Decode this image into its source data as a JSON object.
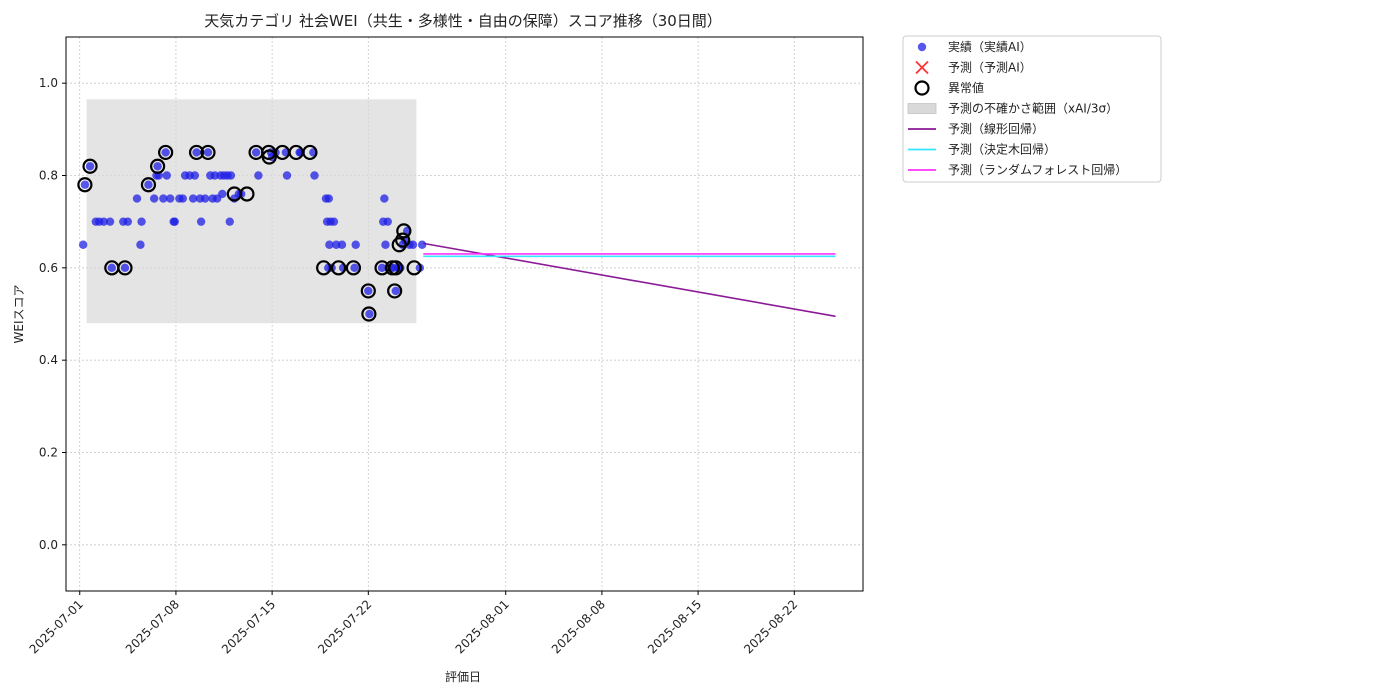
{
  "chart_data": {
    "type": "scatter",
    "title": "天気カテゴリ 社会WEI（共生・多様性・自由の保障）スコア推移（30日間）",
    "xlabel": "評価日",
    "ylabel": "WEIスコア",
    "xlim": [
      "2025-06-30",
      "2025-08-27"
    ],
    "ylim": [
      -0.1,
      1.1
    ],
    "yticks": [
      0.0,
      0.2,
      0.4,
      0.6,
      0.8,
      1.0
    ],
    "ytick_labels": [
      "0.0",
      "0.2",
      "0.4",
      "0.6",
      "0.8",
      "1.0"
    ],
    "xticks": [
      "2025-07-01",
      "2025-07-08",
      "2025-07-15",
      "2025-07-22",
      "2025-08-01",
      "2025-08-08",
      "2025-08-15",
      "2025-08-22"
    ],
    "grid": true,
    "legend_position": "outside-top-right",
    "series": [
      {
        "name": "実績（実績AI）",
        "kind": "scatter",
        "color": "#1f1fe6",
        "points": [
          [
            "2025-07-01T06",
            0.65
          ],
          [
            "2025-07-01T09",
            0.78
          ],
          [
            "2025-07-01T18",
            0.82
          ],
          [
            "2025-07-02T04",
            0.7
          ],
          [
            "2025-07-02T10",
            0.7
          ],
          [
            "2025-07-02T18",
            0.7
          ],
          [
            "2025-07-03T05",
            0.7
          ],
          [
            "2025-07-03T08",
            0.6
          ],
          [
            "2025-07-04T04",
            0.7
          ],
          [
            "2025-07-04T07",
            0.6
          ],
          [
            "2025-07-04T12",
            0.7
          ],
          [
            "2025-07-05T04",
            0.75
          ],
          [
            "2025-07-05T10",
            0.65
          ],
          [
            "2025-07-05T12",
            0.7
          ],
          [
            "2025-07-06T00",
            0.78
          ],
          [
            "2025-07-06T10",
            0.75
          ],
          [
            "2025-07-06T14",
            0.8
          ],
          [
            "2025-07-06T16",
            0.82
          ],
          [
            "2025-07-06T18",
            0.8
          ],
          [
            "2025-07-07T02",
            0.75
          ],
          [
            "2025-07-07T06",
            0.85
          ],
          [
            "2025-07-07T08",
            0.8
          ],
          [
            "2025-07-07T14",
            0.75
          ],
          [
            "2025-07-07T20",
            0.7
          ],
          [
            "2025-07-07T22",
            0.7
          ],
          [
            "2025-07-08T06",
            0.75
          ],
          [
            "2025-07-08T12",
            0.75
          ],
          [
            "2025-07-08T16",
            0.8
          ],
          [
            "2025-07-09T00",
            0.8
          ],
          [
            "2025-07-09T06",
            0.75
          ],
          [
            "2025-07-09T09",
            0.8
          ],
          [
            "2025-07-09T12",
            0.85
          ],
          [
            "2025-07-09T18",
            0.75
          ],
          [
            "2025-07-09T20",
            0.7
          ],
          [
            "2025-07-10T03",
            0.75
          ],
          [
            "2025-07-10T08",
            0.85
          ],
          [
            "2025-07-10T12",
            0.8
          ],
          [
            "2025-07-10T16",
            0.75
          ],
          [
            "2025-07-10T20",
            0.8
          ],
          [
            "2025-07-11T00",
            0.75
          ],
          [
            "2025-07-11T06",
            0.8
          ],
          [
            "2025-07-11T09",
            0.76
          ],
          [
            "2025-07-11T12",
            0.8
          ],
          [
            "2025-07-11T18",
            0.8
          ],
          [
            "2025-07-11T22",
            0.7
          ],
          [
            "2025-07-12T00",
            0.8
          ],
          [
            "2025-07-12T06",
            0.75
          ],
          [
            "2025-07-12T14",
            0.76
          ],
          [
            "2025-07-12T18",
            0.76
          ],
          [
            "2025-07-13T20",
            0.85
          ],
          [
            "2025-07-14T00",
            0.8
          ],
          [
            "2025-07-14T22",
            0.85
          ],
          [
            "2025-07-15T00",
            0.84
          ],
          [
            "2025-07-15T06",
            0.85
          ],
          [
            "2025-07-16T00",
            0.85
          ],
          [
            "2025-07-16T02",
            0.8
          ],
          [
            "2025-07-17T00",
            0.85
          ],
          [
            "2025-07-17T02",
            0.85
          ],
          [
            "2025-07-18T00",
            0.85
          ],
          [
            "2025-07-18T02",
            0.8
          ],
          [
            "2025-07-18T22",
            0.75
          ],
          [
            "2025-07-19T00",
            0.7
          ],
          [
            "2025-07-19T02",
            0.6
          ],
          [
            "2025-07-19T03",
            0.75
          ],
          [
            "2025-07-19T04",
            0.65
          ],
          [
            "2025-07-19T06",
            0.7
          ],
          [
            "2025-07-19T08",
            0.6
          ],
          [
            "2025-07-19T12",
            0.7
          ],
          [
            "2025-07-19T16",
            0.65
          ],
          [
            "2025-07-20T04",
            0.6
          ],
          [
            "2025-07-20T02",
            0.65
          ],
          [
            "2025-07-21T00",
            0.6
          ],
          [
            "2025-07-21T02",
            0.65
          ],
          [
            "2025-07-22T00",
            0.55
          ],
          [
            "2025-07-22T02",
            0.5
          ],
          [
            "2025-07-23T00",
            0.6
          ],
          [
            "2025-07-23T02",
            0.7
          ],
          [
            "2025-07-23T04",
            0.75
          ],
          [
            "2025-07-23T06",
            0.65
          ],
          [
            "2025-07-23T10",
            0.7
          ],
          [
            "2025-07-23T16",
            0.6
          ],
          [
            "2025-07-23T20",
            0.6
          ],
          [
            "2025-07-24T00",
            0.55
          ],
          [
            "2025-07-24T04",
            0.6
          ],
          [
            "2025-07-24T06",
            0.6
          ],
          [
            "2025-07-24T08",
            0.6
          ],
          [
            "2025-07-24T12",
            0.65
          ],
          [
            "2025-07-24T16",
            0.66
          ],
          [
            "2025-07-24T20",
            0.68
          ],
          [
            "2025-07-25T00",
            0.65
          ],
          [
            "2025-07-25T06",
            0.65
          ],
          [
            "2025-07-25T18",
            0.6
          ],
          [
            "2025-07-25T22",
            0.65
          ]
        ]
      },
      {
        "name": "予測（予測AI）",
        "kind": "scatter-x",
        "color": "#ff3333",
        "points": []
      },
      {
        "name": "異常値",
        "kind": "ring",
        "color": "#000000",
        "points": [
          [
            "2025-07-01T09",
            0.78
          ],
          [
            "2025-07-01T18",
            0.82
          ],
          [
            "2025-07-03T08",
            0.6
          ],
          [
            "2025-07-04T07",
            0.6
          ],
          [
            "2025-07-06T00",
            0.78
          ],
          [
            "2025-07-06T16",
            0.82
          ],
          [
            "2025-07-07T06",
            0.85
          ],
          [
            "2025-07-09T12",
            0.85
          ],
          [
            "2025-07-10T08",
            0.85
          ],
          [
            "2025-07-12T06",
            0.76
          ],
          [
            "2025-07-13T04",
            0.76
          ],
          [
            "2025-07-13T20",
            0.85
          ],
          [
            "2025-07-14T18",
            0.85
          ],
          [
            "2025-07-14T19",
            0.84
          ],
          [
            "2025-07-15T18",
            0.85
          ],
          [
            "2025-07-16T18",
            0.85
          ],
          [
            "2025-07-17T18",
            0.85
          ],
          [
            "2025-07-18T18",
            0.6
          ],
          [
            "2025-07-19T20",
            0.6
          ],
          [
            "2025-07-20T22",
            0.6
          ],
          [
            "2025-07-22T00",
            0.55
          ],
          [
            "2025-07-22T01",
            0.5
          ],
          [
            "2025-07-23T00",
            0.6
          ],
          [
            "2025-07-23T18",
            0.6
          ],
          [
            "2025-07-23T22",
            0.55
          ],
          [
            "2025-07-24T00",
            0.6
          ],
          [
            "2025-07-24T06",
            0.65
          ],
          [
            "2025-07-24T12",
            0.66
          ],
          [
            "2025-07-24T14",
            0.68
          ],
          [
            "2025-07-25T08",
            0.6
          ]
        ]
      },
      {
        "name": "予測の不確かさ範囲（xAI/3σ）",
        "kind": "band",
        "color": "#cccccc",
        "x_range": [
          "2025-07-01T12",
          "2025-07-25T12"
        ],
        "y_range": [
          0.48,
          0.965
        ]
      },
      {
        "name": "予測（線形回帰）",
        "kind": "line",
        "color": "#8b1a96",
        "points": [
          [
            "2025-07-26",
            0.653
          ],
          [
            "2025-08-25",
            0.495
          ]
        ]
      },
      {
        "name": "予測（決定木回帰）",
        "kind": "line",
        "color": "#33e6ff",
        "points": [
          [
            "2025-07-26",
            0.625
          ],
          [
            "2025-08-25",
            0.625
          ]
        ]
      },
      {
        "name": "予測（ランダムフォレスト回帰）",
        "kind": "line",
        "color": "#ff33ff",
        "points": [
          [
            "2025-07-26",
            0.63
          ],
          [
            "2025-08-25",
            0.63
          ]
        ]
      }
    ]
  }
}
